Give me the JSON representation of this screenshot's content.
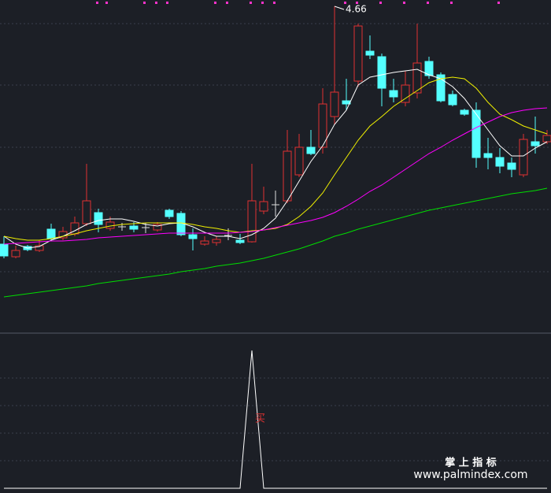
{
  "chart_data": [
    {
      "type": "candlestick",
      "ylim": [
        2.6,
        4.7
      ],
      "max_label": "4.66",
      "up_color": "#e03232",
      "down_color": "#54ffff",
      "flat_color": "#dddddd",
      "open": [
        3.15,
        3.07,
        3.135,
        3.11,
        3.245,
        3.19,
        3.215,
        3.28,
        3.35,
        3.25,
        3.26,
        3.265,
        3.255,
        3.24,
        3.365,
        3.345,
        3.21,
        3.15,
        3.16,
        3.205,
        3.175,
        3.165,
        3.36,
        3.4,
        3.425,
        3.59,
        3.765,
        3.765,
        3.96,
        4.06,
        4.185,
        4.375,
        4.34,
        4.125,
        4.05,
        4.11,
        4.31,
        4.225,
        4.1,
        4.0,
        4.0,
        3.725,
        3.7,
        3.665,
        3.59,
        3.8,
        3.8
      ],
      "high": [
        3.2,
        3.14,
        3.145,
        3.175,
        3.28,
        3.26,
        3.325,
        3.66,
        3.375,
        3.325,
        3.285,
        3.29,
        3.285,
        3.29,
        3.375,
        3.36,
        3.25,
        3.2,
        3.2,
        3.25,
        3.215,
        3.66,
        3.515,
        3.49,
        3.875,
        3.85,
        3.875,
        4.14,
        4.66,
        4.2,
        4.55,
        4.475,
        4.36,
        4.2,
        4.25,
        4.55,
        4.34,
        4.24,
        4.125,
        4.01,
        4.05,
        3.825,
        3.76,
        3.7,
        3.85,
        3.96,
        3.875
      ],
      "low": [
        3.06,
        3.06,
        3.105,
        3.1,
        3.175,
        3.175,
        3.2,
        3.265,
        3.225,
        3.235,
        3.235,
        3.225,
        3.22,
        3.23,
        3.31,
        3.2,
        3.11,
        3.14,
        3.14,
        3.175,
        3.15,
        3.16,
        3.34,
        3.325,
        3.41,
        3.575,
        3.715,
        3.725,
        3.91,
        4.0,
        4.15,
        4.325,
        4.025,
        4.05,
        4.025,
        4.075,
        4.2,
        4.05,
        4.025,
        3.965,
        3.635,
        3.625,
        3.6,
        3.575,
        3.575,
        3.725,
        3.785
      ],
      "close": [
        3.075,
        3.11,
        3.115,
        3.14,
        3.185,
        3.23,
        3.285,
        3.425,
        3.275,
        3.29,
        3.26,
        3.245,
        3.255,
        3.275,
        3.325,
        3.21,
        3.185,
        3.17,
        3.18,
        3.205,
        3.16,
        3.425,
        3.42,
        3.4,
        3.74,
        3.765,
        3.725,
        4.04,
        4.115,
        4.04,
        4.535,
        4.35,
        4.14,
        4.085,
        4.16,
        4.3,
        4.22,
        4.06,
        4.035,
        3.975,
        3.7,
        3.7,
        3.645,
        3.625,
        3.815,
        3.775,
        3.84
      ],
      "series": [
        {
          "color": "#ffffff",
          "values": [
            3.2,
            3.15,
            3.125,
            3.135,
            3.175,
            3.2,
            3.235,
            3.275,
            3.3,
            3.31,
            3.31,
            3.295,
            3.275,
            3.265,
            3.28,
            3.285,
            3.26,
            3.225,
            3.2,
            3.2,
            3.185,
            3.21,
            3.25,
            3.315,
            3.425,
            3.55,
            3.675,
            3.775,
            3.91,
            4.0,
            4.16,
            4.21,
            4.225,
            4.24,
            4.25,
            4.26,
            4.225,
            4.2,
            4.15,
            4.075,
            3.975,
            3.875,
            3.775,
            3.71,
            3.71,
            3.76,
            3.8
          ]
        },
        {
          "color": "#f0f000",
          "values": [
            3.2,
            3.185,
            3.175,
            3.175,
            3.185,
            3.2,
            3.215,
            3.235,
            3.25,
            3.265,
            3.275,
            3.28,
            3.285,
            3.285,
            3.285,
            3.285,
            3.275,
            3.26,
            3.25,
            3.235,
            3.225,
            3.235,
            3.24,
            3.25,
            3.275,
            3.325,
            3.39,
            3.475,
            3.59,
            3.7,
            3.81,
            3.9,
            3.96,
            4.025,
            4.075,
            4.125,
            4.175,
            4.2,
            4.21,
            4.2,
            4.14,
            4.05,
            3.975,
            3.94,
            3.9,
            3.875,
            3.85
          ]
        },
        {
          "color": "#ff00ff",
          "values": [
            3.15,
            3.155,
            3.16,
            3.165,
            3.17,
            3.17,
            3.175,
            3.18,
            3.19,
            3.195,
            3.2,
            3.205,
            3.21,
            3.215,
            3.22,
            3.22,
            3.22,
            3.22,
            3.22,
            3.22,
            3.225,
            3.23,
            3.24,
            3.255,
            3.27,
            3.285,
            3.3,
            3.32,
            3.35,
            3.39,
            3.435,
            3.485,
            3.525,
            3.575,
            3.625,
            3.675,
            3.725,
            3.765,
            3.81,
            3.85,
            3.89,
            3.925,
            3.96,
            3.985,
            4.0,
            4.01,
            4.015
          ]
        },
        {
          "color": "#00dd00",
          "values": [
            2.815,
            2.825,
            2.835,
            2.845,
            2.855,
            2.865,
            2.875,
            2.885,
            2.9,
            2.91,
            2.92,
            2.93,
            2.94,
            2.95,
            2.96,
            2.975,
            2.985,
            2.995,
            3.01,
            3.02,
            3.03,
            3.045,
            3.06,
            3.08,
            3.1,
            3.12,
            3.145,
            3.17,
            3.2,
            3.22,
            3.245,
            3.265,
            3.285,
            3.305,
            3.325,
            3.345,
            3.365,
            3.38,
            3.395,
            3.41,
            3.425,
            3.44,
            3.455,
            3.47,
            3.48,
            3.49,
            3.505
          ]
        }
      ]
    },
    {
      "type": "line",
      "ylim": [
        0,
        1
      ],
      "signal_label": "买",
      "signal_color": "#e03232",
      "series": [
        {
          "color": "#ffffff",
          "values": [
            0,
            0,
            0,
            0,
            0,
            0,
            0,
            0,
            0,
            0,
            0,
            0,
            0,
            0,
            0,
            0,
            0,
            0,
            0,
            0,
            0,
            1,
            0,
            0,
            0,
            0,
            0,
            0,
            0,
            0,
            0,
            0,
            0,
            0,
            0,
            0,
            0,
            0,
            0,
            0,
            0,
            0,
            0,
            0,
            0,
            0,
            0
          ]
        }
      ]
    }
  ],
  "watermark": {
    "title": "掌 上 指 标",
    "url": "www.palmindex.com"
  }
}
